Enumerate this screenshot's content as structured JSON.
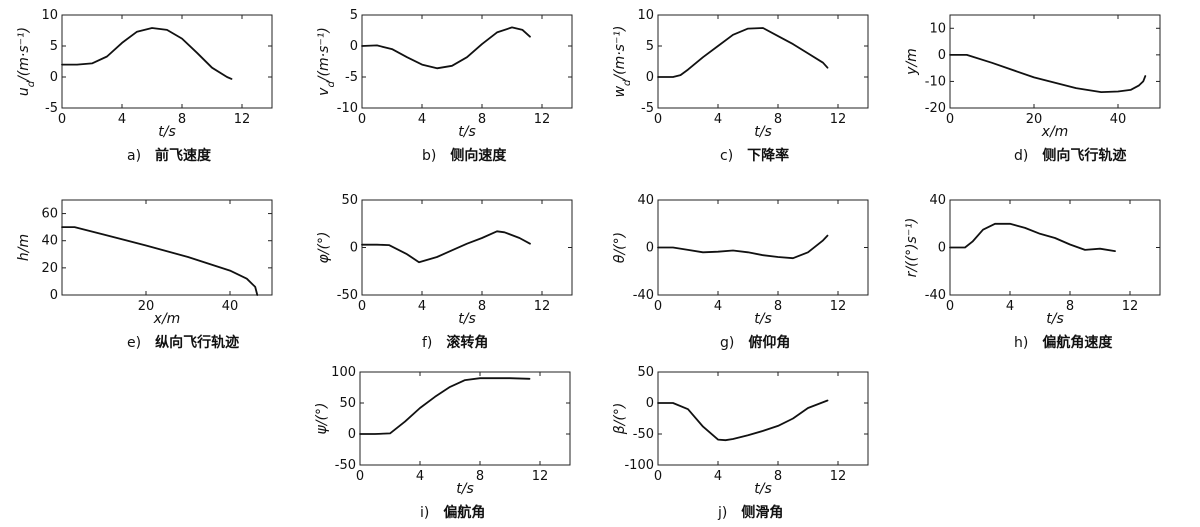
{
  "chart_data": [
    {
      "type": "line",
      "panel": "a)",
      "caption": "前飞速度",
      "xlabel": "t/s",
      "ylabel": "u_d/(m·s⁻¹)",
      "xlim": [
        0,
        14
      ],
      "ylim": [
        -5,
        10
      ],
      "xticks": [
        0,
        4,
        8,
        12
      ],
      "yticks": [
        -5,
        0,
        5,
        10
      ],
      "x": [
        0,
        1,
        2,
        3,
        4,
        5,
        6,
        7,
        8,
        9,
        10,
        11,
        11.3
      ],
      "y": [
        2,
        2,
        2.2,
        3.3,
        5.5,
        7.3,
        7.9,
        7.6,
        6.2,
        3.9,
        1.5,
        0,
        -0.3
      ]
    },
    {
      "type": "line",
      "panel": "b)",
      "caption": "侧向速度",
      "xlabel": "t/s",
      "ylabel": "v_d/(m·s⁻¹)",
      "xlim": [
        0,
        14
      ],
      "ylim": [
        -10,
        5
      ],
      "xticks": [
        0,
        4,
        8,
        12
      ],
      "yticks": [
        -10,
        -5,
        0,
        5
      ],
      "x": [
        0,
        1,
        2,
        3,
        4,
        5,
        6,
        7,
        8,
        9,
        10,
        10.7,
        11.2
      ],
      "y": [
        0,
        0.1,
        -0.5,
        -1.8,
        -3.0,
        -3.6,
        -3.2,
        -1.8,
        0.3,
        2.2,
        3.0,
        2.6,
        1.5
      ]
    },
    {
      "type": "line",
      "panel": "c)",
      "caption": "下降率",
      "xlabel": "t/s",
      "ylabel": "w_d/(m·s⁻¹)",
      "xlim": [
        0,
        14
      ],
      "ylim": [
        -5,
        10
      ],
      "xticks": [
        0,
        4,
        8,
        12
      ],
      "yticks": [
        -5,
        0,
        5,
        10
      ],
      "x": [
        0,
        1,
        1.5,
        2,
        3,
        4,
        5,
        6,
        7,
        8,
        9,
        10,
        11,
        11.3
      ],
      "y": [
        0,
        0,
        0.3,
        1.2,
        3.2,
        5.0,
        6.8,
        7.8,
        7.9,
        6.6,
        5.3,
        3.8,
        2.3,
        1.5
      ]
    },
    {
      "type": "line",
      "panel": "d)",
      "caption": "侧向飞行轨迹",
      "xlabel": "x/m",
      "ylabel": "y/m",
      "xlim": [
        0,
        50
      ],
      "ylim": [
        -20,
        15
      ],
      "xticks": [
        0,
        20,
        40
      ],
      "yticks": [
        -20,
        -10,
        0,
        10
      ],
      "x": [
        0,
        4,
        10,
        20,
        30,
        36,
        40,
        43,
        45,
        46,
        46.5
      ],
      "y": [
        0,
        0,
        -3,
        -8.5,
        -12.5,
        -14,
        -13.8,
        -13.2,
        -11.5,
        -10,
        -8
      ]
    },
    {
      "type": "line",
      "panel": "e)",
      "caption": "纵向飞行轨迹",
      "xlabel": "x/m",
      "ylabel": "h/m",
      "xlim": [
        0,
        50
      ],
      "ylim": [
        0,
        70
      ],
      "xticks": [
        20,
        40
      ],
      "yticks": [
        0,
        20,
        40,
        60
      ],
      "x": [
        0,
        3,
        10,
        20,
        30,
        40,
        44,
        46,
        46.5
      ],
      "y": [
        50,
        50,
        44.5,
        36.5,
        28,
        18,
        12,
        6,
        0
      ]
    },
    {
      "type": "line",
      "panel": "f)",
      "caption": "滚转角",
      "xlabel": "t/s",
      "ylabel": "φ/(°)",
      "xlim": [
        0,
        14
      ],
      "ylim": [
        -50,
        50
      ],
      "xticks": [
        0,
        4,
        8,
        12
      ],
      "yticks": [
        -50,
        0,
        50
      ],
      "x": [
        0,
        1,
        1.8,
        3,
        3.8,
        5,
        6,
        7,
        8,
        9,
        9.5,
        10.5,
        11.2
      ],
      "y": [
        3,
        3,
        2.5,
        -7,
        -15.5,
        -10,
        -3,
        4,
        10,
        17,
        16,
        10,
        4
      ]
    },
    {
      "type": "line",
      "panel": "g)",
      "caption": "俯仰角",
      "xlabel": "t/s",
      "ylabel": "θ/(°)",
      "xlim": [
        0,
        14
      ],
      "ylim": [
        -40,
        40
      ],
      "xticks": [
        0,
        4,
        8,
        12
      ],
      "yticks": [
        -40,
        0,
        40
      ],
      "x": [
        0,
        1,
        2,
        3,
        4,
        5,
        6,
        7,
        8,
        9,
        10,
        11,
        11.3
      ],
      "y": [
        0,
        0,
        -2,
        -4,
        -3.5,
        -2.5,
        -4,
        -6.5,
        -8,
        -9,
        -4,
        6,
        10
      ]
    },
    {
      "type": "line",
      "panel": "h)",
      "caption": "偏航角速度",
      "xlabel": "t/s",
      "ylabel": "r/((°)s⁻¹)",
      "xlim": [
        0,
        14
      ],
      "ylim": [
        -40,
        40
      ],
      "xticks": [
        0,
        4,
        8,
        12
      ],
      "yticks": [
        -40,
        0,
        40
      ],
      "x": [
        0,
        1,
        1.5,
        2.2,
        3,
        4,
        5,
        6,
        7,
        8,
        9,
        10,
        11
      ],
      "y": [
        0,
        0,
        5,
        15,
        20,
        20,
        16.5,
        11.5,
        8,
        2.5,
        -2,
        -1,
        -3
      ]
    },
    {
      "type": "line",
      "panel": "i)",
      "caption": "偏航角",
      "xlabel": "t/s",
      "ylabel": "ψ/(°)",
      "xlim": [
        0,
        14
      ],
      "ylim": [
        -50,
        100
      ],
      "xticks": [
        0,
        4,
        8,
        12
      ],
      "yticks": [
        -50,
        0,
        50,
        100
      ],
      "x": [
        0,
        1,
        2,
        3,
        4,
        5,
        6,
        7,
        8,
        9,
        10,
        11.3
      ],
      "y": [
        0,
        0,
        1,
        20,
        42,
        60,
        76,
        87,
        90,
        90,
        90,
        89
      ]
    },
    {
      "type": "line",
      "panel": "j)",
      "caption": "侧滑角",
      "xlabel": "t/s",
      "ylabel": "β/(°)",
      "xlim": [
        0,
        14
      ],
      "ylim": [
        -100,
        50
      ],
      "xticks": [
        0,
        4,
        8,
        12
      ],
      "yticks": [
        -100,
        -50,
        0,
        50
      ],
      "x": [
        0,
        1,
        2,
        3,
        4,
        4.5,
        5,
        6,
        7,
        8,
        9,
        10,
        11.3
      ],
      "y": [
        0,
        0,
        -10,
        -38,
        -59,
        -60,
        -58,
        -52,
        -45,
        -37,
        -25,
        -8,
        4
      ]
    }
  ]
}
